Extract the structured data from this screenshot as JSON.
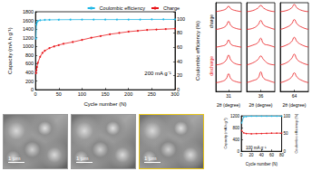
{
  "chart_data": [
    {
      "type": "line",
      "x_label": "Cycle number (N)",
      "y_label": "Capacity (mA h g⁻¹)",
      "y2_label": "Coulombic efficiency (%)",
      "annotations": [
        "200 mA g⁻¹"
      ],
      "xlim": [
        0,
        300
      ],
      "xticks": [
        0,
        50,
        100,
        150,
        200,
        250,
        300
      ],
      "ylim": [
        0,
        1800
      ],
      "yticks": [
        0,
        200,
        400,
        600,
        800,
        1000,
        1200,
        1400,
        1600,
        1800
      ],
      "y2lim": [
        0,
        110
      ],
      "y2ticks": [
        0,
        20,
        40,
        60,
        80,
        100
      ],
      "legend": "top-right",
      "series": [
        {
          "name": "Coulombic efficiency",
          "color": "#22b8e6",
          "marker": "circle",
          "axis": "y2",
          "x": [
            1,
            2,
            3,
            5,
            10,
            20,
            30,
            50,
            75,
            100,
            125,
            150,
            175,
            200,
            225,
            250,
            275,
            300
          ],
          "values": [
            72,
            92,
            95,
            97,
            98,
            98.5,
            98.6,
            98.8,
            98.9,
            99,
            99,
            99,
            99,
            99.1,
            99.1,
            99.2,
            99.2,
            99.2
          ]
        },
        {
          "name": "Charge",
          "color": "#e8161b",
          "marker": "circle",
          "x": [
            1,
            2,
            3,
            5,
            10,
            15,
            20,
            30,
            40,
            50,
            60,
            80,
            100,
            120,
            140,
            160,
            180,
            200,
            220,
            240,
            260,
            280,
            300
          ],
          "values": [
            380,
            450,
            520,
            620,
            760,
            850,
            900,
            960,
            1000,
            1030,
            1060,
            1100,
            1150,
            1200,
            1240,
            1280,
            1310,
            1340,
            1360,
            1380,
            1390,
            1400,
            1410
          ]
        }
      ]
    },
    {
      "type": "line",
      "x_label": "2θ (degree)",
      "annotations": [
        "discharge",
        "charge"
      ],
      "tick_labels": "x",
      "xlim": [
        30,
        32
      ],
      "xticks": [
        31
      ],
      "ylim": [
        0,
        10
      ],
      "x": [
        30,
        30.4,
        30.8,
        31,
        31.2,
        31.6,
        32
      ],
      "series": [
        {
          "color": "#e8161b",
          "values": [
            1,
            1.1,
            1.4,
            2.0,
            1.4,
            1.1,
            1
          ]
        },
        {
          "color": "#e8161b",
          "values": [
            3,
            3.1,
            3.5,
            4.1,
            3.5,
            3.1,
            3
          ]
        },
        {
          "color": "#e8161b",
          "values": [
            5,
            5.1,
            5.3,
            5.8,
            5.3,
            5.1,
            5
          ]
        },
        {
          "color": "#e8161b",
          "values": [
            7,
            7.1,
            7.4,
            7.9,
            7.4,
            7.1,
            7
          ]
        },
        {
          "color": "#e8161b",
          "values": [
            9,
            9.1,
            9.3,
            9.6,
            9.3,
            9.1,
            9
          ]
        }
      ]
    },
    {
      "type": "line",
      "x_label": "2θ (degree)",
      "tick_labels": "x",
      "xlim": [
        35,
        37
      ],
      "xticks": [
        36
      ],
      "ylim": [
        0,
        10
      ],
      "x": [
        35,
        35.4,
        35.8,
        36,
        36.2,
        36.6,
        37
      ],
      "series": [
        {
          "color": "#e8161b",
          "values": [
            1,
            1.2,
            1.5,
            2.2,
            1.5,
            1.2,
            1
          ]
        },
        {
          "color": "#e8161b",
          "values": [
            3,
            3.2,
            3.6,
            4.0,
            3.6,
            3.1,
            3
          ]
        },
        {
          "color": "#e8161b",
          "values": [
            5,
            5.2,
            5.5,
            6.0,
            5.4,
            5.2,
            5
          ]
        },
        {
          "color": "#e8161b",
          "values": [
            7,
            7.1,
            7.5,
            8.0,
            7.5,
            7.2,
            7
          ]
        },
        {
          "color": "#e8161b",
          "values": [
            9,
            9.1,
            9.4,
            9.7,
            9.4,
            9.1,
            9
          ]
        }
      ]
    },
    {
      "type": "line",
      "x_label": "2θ (degree)",
      "tick_labels": "x",
      "xlim": [
        63,
        65
      ],
      "xticks": [
        64
      ],
      "ylim": [
        0,
        10
      ],
      "x": [
        63,
        63.4,
        63.8,
        64,
        64.2,
        64.6,
        65
      ],
      "series": [
        {
          "color": "#e8161b",
          "values": [
            1,
            1.2,
            1.6,
            2.1,
            1.6,
            1.2,
            1
          ]
        },
        {
          "color": "#e8161b",
          "values": [
            3,
            3.2,
            3.7,
            4.2,
            3.6,
            3.2,
            3
          ]
        },
        {
          "color": "#e8161b",
          "values": [
            5,
            5.2,
            5.6,
            6.1,
            5.6,
            5.2,
            5
          ]
        },
        {
          "color": "#e8161b",
          "values": [
            7,
            7.2,
            7.6,
            8.1,
            7.6,
            7.2,
            7
          ]
        },
        {
          "color": "#e8161b",
          "values": [
            9,
            9.1,
            9.4,
            9.8,
            9.4,
            9.1,
            9
          ]
        }
      ]
    },
    {
      "type": "line",
      "x_label": "Cycle number (N)",
      "y_label": "Capacity (mA h g⁻¹)",
      "y2_label": "Coulombic efficiency (%)",
      "annotations": [
        "100 mA g⁻¹"
      ],
      "xlim": [
        0,
        80
      ],
      "xticks": [
        0,
        20,
        40,
        60,
        80
      ],
      "ylim": [
        0,
        1200
      ],
      "yticks": [
        0,
        400,
        800,
        1200
      ],
      "y2lim": [
        0,
        100
      ],
      "y2ticks": [
        0,
        50,
        100
      ],
      "series": [
        {
          "color": "#22b8e6",
          "marker": "circle",
          "axis": "y2",
          "x": [
            1,
            5,
            10,
            20,
            30,
            40,
            50,
            60,
            70,
            80
          ],
          "values": [
            80,
            97,
            98,
            99,
            99,
            99,
            99,
            99,
            99,
            99
          ]
        },
        {
          "color": "#e8161b",
          "marker": "circle",
          "x": [
            1,
            5,
            10,
            20,
            30,
            40,
            50,
            60,
            70,
            80
          ],
          "values": [
            700,
            620,
            600,
            590,
            595,
            600,
            605,
            610,
            610,
            615
          ]
        }
      ]
    }
  ],
  "images": [
    {
      "scale_bar": "1 μm",
      "frame_color": "#9a9a9a"
    },
    {
      "scale_bar": "1 μm",
      "frame_color": "#9a9a9a"
    },
    {
      "scale_bar": "1 μm",
      "frame_color": "#e8c51a"
    }
  ]
}
